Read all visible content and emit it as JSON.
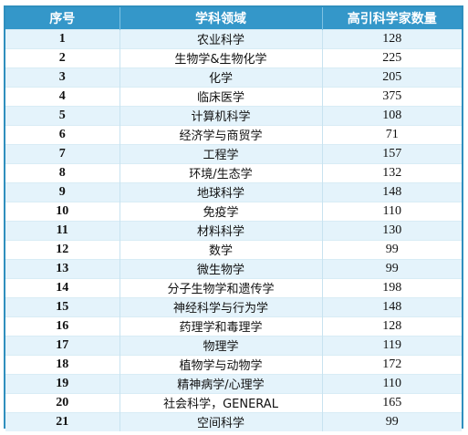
{
  "table": {
    "headers": [
      "序号",
      "学科领域",
      "高引科学家数量"
    ],
    "rows": [
      {
        "seq": "1",
        "field": "农业科学",
        "count": "128"
      },
      {
        "seq": "2",
        "field": "生物学&生物化学",
        "count": "225"
      },
      {
        "seq": "3",
        "field": "化学",
        "count": "205"
      },
      {
        "seq": "4",
        "field": "临床医学",
        "count": "375"
      },
      {
        "seq": "5",
        "field": "计算机科学",
        "count": "108"
      },
      {
        "seq": "6",
        "field": "经济学与商贸学",
        "count": "71"
      },
      {
        "seq": "7",
        "field": "工程学",
        "count": "157"
      },
      {
        "seq": "8",
        "field": "环境/生态学",
        "count": "132"
      },
      {
        "seq": "9",
        "field": "地球科学",
        "count": "148"
      },
      {
        "seq": "10",
        "field": "免疫学",
        "count": "110"
      },
      {
        "seq": "11",
        "field": "材料科学",
        "count": "130"
      },
      {
        "seq": "12",
        "field": "数学",
        "count": "99"
      },
      {
        "seq": "13",
        "field": "微生物学",
        "count": "99"
      },
      {
        "seq": "14",
        "field": "分子生物学和遗传学",
        "count": "198"
      },
      {
        "seq": "15",
        "field": "神经科学与行为学",
        "count": "148"
      },
      {
        "seq": "16",
        "field": "药理学和毒理学",
        "count": "128"
      },
      {
        "seq": "17",
        "field": "物理学",
        "count": "119"
      },
      {
        "seq": "18",
        "field": "植物学与动物学",
        "count": "172"
      },
      {
        "seq": "19",
        "field": "精神病学/心理学",
        "count": "110"
      },
      {
        "seq": "20",
        "field": "社会科学，GENERAL",
        "count": "165"
      },
      {
        "seq": "21",
        "field": "空间科学",
        "count": "99"
      }
    ]
  },
  "colors": {
    "header_bg": "#3497c9",
    "border": "#2f8fbe",
    "row_alt_bg": "#e4f3fb"
  }
}
